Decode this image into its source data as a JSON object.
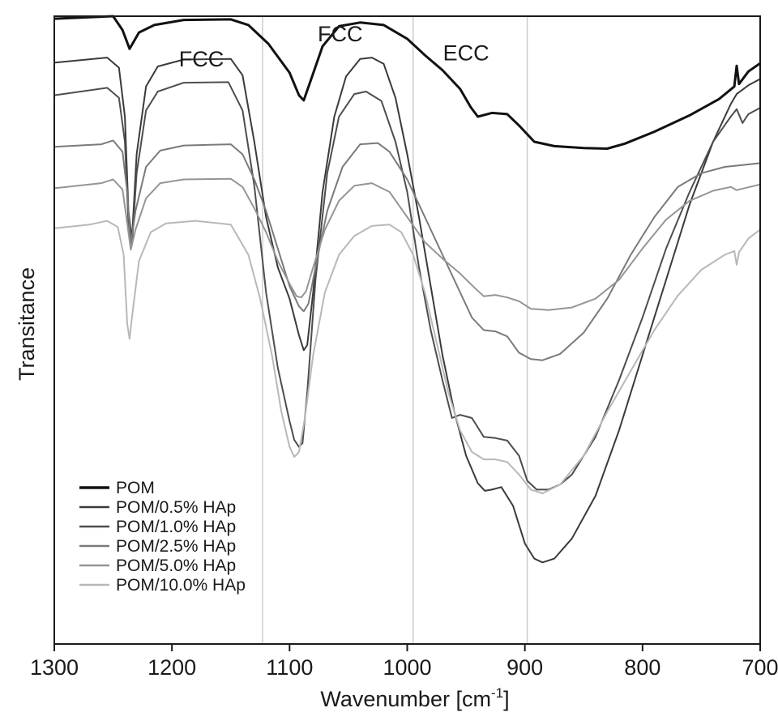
{
  "chart_data": {
    "type": "line",
    "title": "",
    "xlabel": "Wavenumber [cm",
    "xlabel_sup": "-1",
    "xlabel_end": "]",
    "ylabel": "Transitance",
    "xlim": [
      1300,
      700
    ],
    "x_reversed": true,
    "ylim": [
      0,
      100
    ],
    "y_ticks_shown": false,
    "grid": false,
    "x_ticks": [
      1300,
      1200,
      1100,
      1000,
      900,
      800,
      700
    ],
    "x_tick_labels": [
      "1300",
      "1200",
      "1100",
      "1000",
      "900",
      "800",
      "700"
    ],
    "reference_lines_x": [
      1123,
      995,
      898
    ],
    "reference_line_color": "#cccccc",
    "annotations": [
      {
        "text": "FCC",
        "x": 1175,
        "y": 92
      },
      {
        "text": "FCC",
        "x": 1057,
        "y": 96
      },
      {
        "text": "ECC",
        "x": 950,
        "y": 93
      }
    ],
    "legend": {
      "position": "bottom-left"
    },
    "series": [
      {
        "name": "POM",
        "color": "#111111",
        "width": 3,
        "points": [
          [
            1300,
            99.6
          ],
          [
            1250,
            100
          ],
          [
            1242,
            97.8
          ],
          [
            1236,
            94.8
          ],
          [
            1228,
            97.4
          ],
          [
            1215,
            98.6
          ],
          [
            1190,
            99.4
          ],
          [
            1150,
            99.5
          ],
          [
            1135,
            98.6
          ],
          [
            1118,
            95.6
          ],
          [
            1100,
            91.0
          ],
          [
            1092,
            87.4
          ],
          [
            1088,
            86.6
          ],
          [
            1082,
            89.8
          ],
          [
            1072,
            95.2
          ],
          [
            1058,
            98.4
          ],
          [
            1040,
            99.0
          ],
          [
            1020,
            98.6
          ],
          [
            1000,
            96.4
          ],
          [
            985,
            93.8
          ],
          [
            970,
            91.4
          ],
          [
            955,
            88.4
          ],
          [
            946,
            85.5
          ],
          [
            940,
            84.0
          ],
          [
            928,
            84.6
          ],
          [
            915,
            84.4
          ],
          [
            905,
            82.6
          ],
          [
            892,
            80.0
          ],
          [
            875,
            79.3
          ],
          [
            850,
            79.0
          ],
          [
            830,
            78.9
          ],
          [
            815,
            79.7
          ],
          [
            790,
            81.6
          ],
          [
            760,
            84.2
          ],
          [
            735,
            86.8
          ],
          [
            722,
            88.8
          ],
          [
            720,
            92.1
          ],
          [
            718,
            89.2
          ],
          [
            710,
            91.2
          ],
          [
            700,
            92.5
          ]
        ]
      },
      {
        "name": "POM/0.5% HAp",
        "color": "#3a3a3a",
        "width": 2,
        "points": [
          [
            1300,
            92.6
          ],
          [
            1255,
            93.4
          ],
          [
            1245,
            91.8
          ],
          [
            1240,
            84.0
          ],
          [
            1237,
            69.0
          ],
          [
            1234,
            64.4
          ],
          [
            1230,
            78.0
          ],
          [
            1222,
            88.8
          ],
          [
            1212,
            92.0
          ],
          [
            1190,
            93.1
          ],
          [
            1150,
            93.2
          ],
          [
            1140,
            90.6
          ],
          [
            1130,
            80.0
          ],
          [
            1120,
            68.0
          ],
          [
            1110,
            60.0
          ],
          [
            1100,
            55.0
          ],
          [
            1092,
            49.2
          ],
          [
            1088,
            46.8
          ],
          [
            1085,
            47.6
          ],
          [
            1080,
            56.0
          ],
          [
            1072,
            72.0
          ],
          [
            1062,
            84.0
          ],
          [
            1052,
            90.4
          ],
          [
            1040,
            93.2
          ],
          [
            1030,
            93.4
          ],
          [
            1020,
            92.4
          ],
          [
            1010,
            87.0
          ],
          [
            1000,
            78.0
          ],
          [
            990,
            68.0
          ],
          [
            980,
            57.0
          ],
          [
            970,
            46.0
          ],
          [
            960,
            37.0
          ],
          [
            950,
            30.0
          ],
          [
            940,
            25.6
          ],
          [
            934,
            24.4
          ],
          [
            928,
            24.6
          ],
          [
            920,
            25.0
          ],
          [
            910,
            22.0
          ],
          [
            900,
            16.0
          ],
          [
            892,
            13.6
          ],
          [
            885,
            13.0
          ],
          [
            875,
            13.6
          ],
          [
            860,
            16.8
          ],
          [
            840,
            23.6
          ],
          [
            820,
            34.0
          ],
          [
            800,
            46.0
          ],
          [
            780,
            58.0
          ],
          [
            760,
            70.0
          ],
          [
            740,
            80.0
          ],
          [
            725,
            86.0
          ],
          [
            720,
            87.6
          ],
          [
            710,
            89.0
          ],
          [
            700,
            90.0
          ]
        ]
      },
      {
        "name": "POM/1.0% HAp",
        "color": "#4e4e4e",
        "width": 2,
        "points": [
          [
            1300,
            87.4
          ],
          [
            1255,
            88.6
          ],
          [
            1245,
            87.0
          ],
          [
            1240,
            80.0
          ],
          [
            1237,
            67.0
          ],
          [
            1234,
            63.6
          ],
          [
            1230,
            75.0
          ],
          [
            1222,
            85.0
          ],
          [
            1212,
            88.0
          ],
          [
            1190,
            89.4
          ],
          [
            1152,
            89.5
          ],
          [
            1140,
            85.0
          ],
          [
            1130,
            73.0
          ],
          [
            1120,
            56.0
          ],
          [
            1110,
            44.0
          ],
          [
            1100,
            35.5
          ],
          [
            1096,
            32.5
          ],
          [
            1092,
            31.4
          ],
          [
            1089,
            32.0
          ],
          [
            1085,
            40.0
          ],
          [
            1078,
            58.0
          ],
          [
            1068,
            75.0
          ],
          [
            1058,
            84.0
          ],
          [
            1045,
            87.6
          ],
          [
            1035,
            88.0
          ],
          [
            1022,
            86.5
          ],
          [
            1010,
            80.0
          ],
          [
            1000,
            72.0
          ],
          [
            990,
            60.0
          ],
          [
            980,
            50.0
          ],
          [
            970,
            42.0
          ],
          [
            962,
            36.0
          ],
          [
            955,
            36.5
          ],
          [
            945,
            36.0
          ],
          [
            935,
            33.0
          ],
          [
            925,
            32.8
          ],
          [
            915,
            32.4
          ],
          [
            905,
            30.0
          ],
          [
            898,
            26.0
          ],
          [
            890,
            24.6
          ],
          [
            880,
            24.6
          ],
          [
            870,
            25.4
          ],
          [
            860,
            27.0
          ],
          [
            840,
            33.0
          ],
          [
            820,
            42.0
          ],
          [
            800,
            52.0
          ],
          [
            780,
            63.0
          ],
          [
            760,
            72.0
          ],
          [
            740,
            80.0
          ],
          [
            725,
            84.0
          ],
          [
            720,
            85.2
          ],
          [
            715,
            83.0
          ],
          [
            710,
            84.4
          ],
          [
            700,
            85.4
          ]
        ]
      },
      {
        "name": "POM/2.5% HAp",
        "color": "#7a7a7a",
        "width": 2,
        "points": [
          [
            1300,
            79.2
          ],
          [
            1260,
            79.6
          ],
          [
            1250,
            80.2
          ],
          [
            1242,
            78.4
          ],
          [
            1238,
            72.0
          ],
          [
            1235,
            63.6
          ],
          [
            1231,
            69.0
          ],
          [
            1222,
            76.0
          ],
          [
            1210,
            78.6
          ],
          [
            1190,
            79.4
          ],
          [
            1150,
            79.6
          ],
          [
            1140,
            78.0
          ],
          [
            1130,
            74.0
          ],
          [
            1120,
            69.0
          ],
          [
            1110,
            63.0
          ],
          [
            1100,
            57.0
          ],
          [
            1092,
            53.8
          ],
          [
            1088,
            53.0
          ],
          [
            1084,
            54.2
          ],
          [
            1078,
            60.0
          ],
          [
            1068,
            69.0
          ],
          [
            1055,
            76.0
          ],
          [
            1040,
            79.6
          ],
          [
            1025,
            79.8
          ],
          [
            1015,
            78.4
          ],
          [
            1000,
            74.0
          ],
          [
            985,
            68.0
          ],
          [
            970,
            62.0
          ],
          [
            955,
            56.0
          ],
          [
            945,
            52.0
          ],
          [
            935,
            50.0
          ],
          [
            925,
            49.8
          ],
          [
            915,
            49.0
          ],
          [
            905,
            46.4
          ],
          [
            895,
            45.4
          ],
          [
            885,
            45.2
          ],
          [
            870,
            46.2
          ],
          [
            850,
            49.6
          ],
          [
            830,
            55.0
          ],
          [
            810,
            62.0
          ],
          [
            790,
            68.0
          ],
          [
            770,
            72.8
          ],
          [
            750,
            75.0
          ],
          [
            730,
            76.0
          ],
          [
            720,
            76.2
          ],
          [
            700,
            76.6
          ]
        ]
      },
      {
        "name": "POM/5.0% HAp",
        "color": "#959595",
        "width": 2,
        "points": [
          [
            1300,
            72.6
          ],
          [
            1260,
            73.4
          ],
          [
            1250,
            74.0
          ],
          [
            1242,
            72.4
          ],
          [
            1238,
            67.0
          ],
          [
            1235,
            62.8
          ],
          [
            1231,
            66.0
          ],
          [
            1222,
            71.0
          ],
          [
            1210,
            73.4
          ],
          [
            1190,
            74.0
          ],
          [
            1150,
            74.1
          ],
          [
            1140,
            72.8
          ],
          [
            1130,
            69.4
          ],
          [
            1120,
            65.6
          ],
          [
            1110,
            61.0
          ],
          [
            1100,
            57.4
          ],
          [
            1094,
            55.4
          ],
          [
            1090,
            55.2
          ],
          [
            1086,
            56.2
          ],
          [
            1080,
            60.0
          ],
          [
            1070,
            66.0
          ],
          [
            1058,
            70.6
          ],
          [
            1045,
            73.0
          ],
          [
            1030,
            73.4
          ],
          [
            1015,
            72.0
          ],
          [
            1000,
            68.0
          ],
          [
            985,
            64.0
          ],
          [
            970,
            61.4
          ],
          [
            955,
            59.0
          ],
          [
            942,
            56.6
          ],
          [
            935,
            55.4
          ],
          [
            925,
            55.6
          ],
          [
            915,
            55.2
          ],
          [
            905,
            54.6
          ],
          [
            895,
            53.4
          ],
          [
            880,
            53.2
          ],
          [
            860,
            53.6
          ],
          [
            840,
            55.0
          ],
          [
            820,
            58.0
          ],
          [
            800,
            63.0
          ],
          [
            780,
            67.6
          ],
          [
            760,
            70.6
          ],
          [
            740,
            72.2
          ],
          [
            725,
            72.8
          ],
          [
            720,
            72.3
          ],
          [
            700,
            73.2
          ]
        ]
      },
      {
        "name": "POM/10.0% HAp",
        "color": "#b8b8b8",
        "width": 2,
        "points": [
          [
            1300,
            66.2
          ],
          [
            1270,
            66.8
          ],
          [
            1255,
            67.4
          ],
          [
            1246,
            66.4
          ],
          [
            1241,
            62.0
          ],
          [
            1238,
            51.0
          ],
          [
            1236,
            48.6
          ],
          [
            1234,
            52.0
          ],
          [
            1228,
            61.0
          ],
          [
            1218,
            65.6
          ],
          [
            1205,
            67.0
          ],
          [
            1180,
            67.4
          ],
          [
            1150,
            66.8
          ],
          [
            1135,
            62.0
          ],
          [
            1125,
            55.0
          ],
          [
            1115,
            46.0
          ],
          [
            1107,
            37.0
          ],
          [
            1100,
            31.4
          ],
          [
            1096,
            29.8
          ],
          [
            1092,
            30.6
          ],
          [
            1087,
            36.0
          ],
          [
            1080,
            46.0
          ],
          [
            1070,
            56.0
          ],
          [
            1058,
            62.0
          ],
          [
            1045,
            65.0
          ],
          [
            1030,
            66.6
          ],
          [
            1015,
            66.8
          ],
          [
            1005,
            65.6
          ],
          [
            995,
            62.0
          ],
          [
            985,
            56.0
          ],
          [
            975,
            48.0
          ],
          [
            965,
            40.0
          ],
          [
            955,
            34.0
          ],
          [
            945,
            30.6
          ],
          [
            935,
            29.4
          ],
          [
            925,
            29.4
          ],
          [
            915,
            29.0
          ],
          [
            905,
            27.0
          ],
          [
            895,
            24.6
          ],
          [
            885,
            24.0
          ],
          [
            870,
            25.4
          ],
          [
            850,
            30.0
          ],
          [
            830,
            37.0
          ],
          [
            810,
            43.5
          ],
          [
            790,
            50.0
          ],
          [
            770,
            55.5
          ],
          [
            750,
            59.6
          ],
          [
            730,
            62.0
          ],
          [
            722,
            62.6
          ],
          [
            720,
            60.4
          ],
          [
            718,
            62.4
          ],
          [
            710,
            64.6
          ],
          [
            700,
            66.0
          ]
        ]
      }
    ]
  }
}
